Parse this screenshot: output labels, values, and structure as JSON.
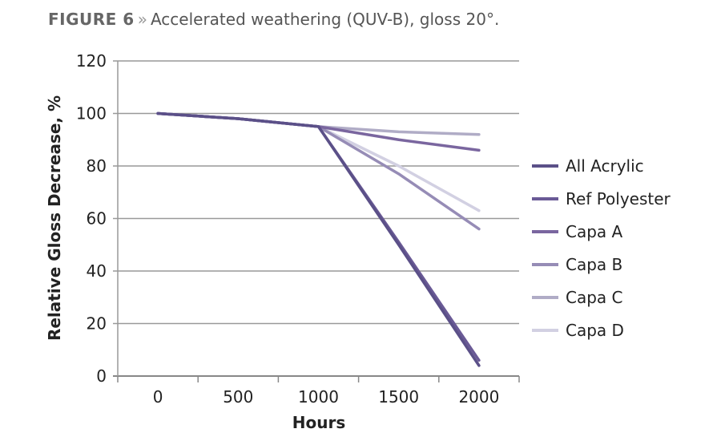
{
  "figure": {
    "label": "FIGURE 6",
    "separator": "»",
    "caption": "Accelerated weathering (QUV-B), gloss 20°."
  },
  "chart_data": {
    "type": "line",
    "title": "FIGURE 6 » Accelerated weathering (QUV-B), gloss 20°.",
    "xlabel": "Hours",
    "ylabel": "Relative Gloss Decrease, %",
    "categories": [
      "0",
      "500",
      "1000",
      "1500",
      "2000"
    ],
    "ylim": [
      0,
      120
    ],
    "yticks": [
      0,
      20,
      40,
      60,
      80,
      100,
      120
    ],
    "grid": true,
    "legend": "right",
    "series": [
      {
        "name": "All Acrylic",
        "color": "#5b5088",
        "values": [
          100,
          98,
          95,
          50,
          4
        ]
      },
      {
        "name": "Ref Polyester",
        "color": "#6a5a96",
        "values": [
          100,
          98,
          95,
          51,
          6
        ]
      },
      {
        "name": "Capa A",
        "color": "#7a669f",
        "values": [
          100,
          98,
          95,
          90,
          86
        ]
      },
      {
        "name": "Capa B",
        "color": "#968cb6",
        "values": [
          100,
          98,
          95,
          77,
          56
        ]
      },
      {
        "name": "Capa C",
        "color": "#b0acc6",
        "values": [
          100,
          98,
          95,
          93,
          92
        ]
      },
      {
        "name": "Capa D",
        "color": "#d2d0e2",
        "values": [
          100,
          98,
          95,
          80,
          63
        ]
      }
    ]
  }
}
